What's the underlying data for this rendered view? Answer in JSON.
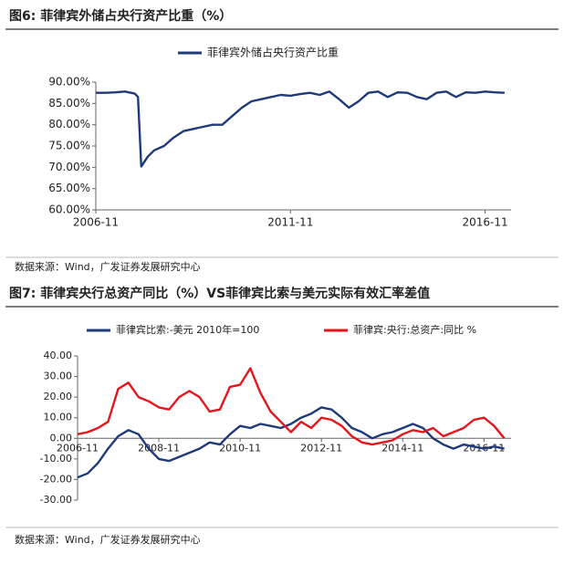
{
  "chart_data": [
    {
      "type": "line",
      "title": "图6: 菲律宾外储占央行资产比重（%）",
      "source": "数据来源：Wind，广发证券发展研究中心",
      "x": [
        "2006-11",
        "2007-02",
        "2007-05",
        "2007-08",
        "2007-11",
        "2007-12",
        "2008-01",
        "2008-03",
        "2008-05",
        "2008-08",
        "2008-11",
        "2009-02",
        "2009-05",
        "2009-08",
        "2009-11",
        "2010-02",
        "2010-05",
        "2010-08",
        "2010-11",
        "2011-02",
        "2011-05",
        "2011-08",
        "2011-11",
        "2012-02",
        "2012-05",
        "2012-08",
        "2012-11",
        "2013-02",
        "2013-05",
        "2013-08",
        "2013-11",
        "2014-02",
        "2014-05",
        "2014-08",
        "2014-11",
        "2015-02",
        "2015-05",
        "2015-08",
        "2015-11",
        "2016-02",
        "2016-05",
        "2016-08",
        "2016-11",
        "2017-02",
        "2017-05"
      ],
      "series": [
        {
          "name": "菲律宾外储占央行资产比重",
          "color": "#1f3a7a",
          "values": [
            87.5,
            87.5,
            87.6,
            87.8,
            87.3,
            86.5,
            70.2,
            72.5,
            74,
            75,
            77,
            78.5,
            79,
            79.5,
            80,
            80,
            82,
            84,
            85.5,
            86,
            86.5,
            87,
            86.8,
            87.2,
            87.5,
            87,
            87.8,
            86,
            84,
            85.5,
            87.5,
            87.8,
            86.5,
            87.6,
            87.5,
            86.5,
            86,
            87.5,
            87.8,
            86.5,
            87.6,
            87.5,
            87.8,
            87.6,
            87.5
          ]
        }
      ],
      "xlim": [
        "2006-11",
        "2017-07"
      ],
      "xticks": [
        "2006-11",
        "2011-11",
        "2016-11"
      ],
      "ylim": [
        60,
        90
      ],
      "yticks": [
        {
          "value": 60,
          "label": "60.00%"
        },
        {
          "value": 65,
          "label": "65.00%"
        },
        {
          "value": 70,
          "label": "70.00%"
        },
        {
          "value": 75,
          "label": "75.00%"
        },
        {
          "value": 80,
          "label": "80.00%"
        },
        {
          "value": 85,
          "label": "85.00%"
        },
        {
          "value": 90,
          "label": "90.00%"
        }
      ]
    },
    {
      "type": "line",
      "title": "图7: 菲律宾央行总资产同比（%）VS菲律宾比索与美元实际有效汇率差值",
      "source": "数据来源：Wind，广发证券发展研究中心",
      "x": [
        "2006-11",
        "2007-02",
        "2007-05",
        "2007-08",
        "2007-11",
        "2008-02",
        "2008-05",
        "2008-08",
        "2008-11",
        "2009-02",
        "2009-05",
        "2009-08",
        "2009-11",
        "2010-02",
        "2010-05",
        "2010-08",
        "2010-11",
        "2011-02",
        "2011-05",
        "2011-08",
        "2011-11",
        "2012-02",
        "2012-05",
        "2012-08",
        "2012-11",
        "2013-02",
        "2013-05",
        "2013-08",
        "2013-11",
        "2014-02",
        "2014-05",
        "2014-08",
        "2014-11",
        "2015-02",
        "2015-05",
        "2015-08",
        "2015-11",
        "2016-02",
        "2016-05",
        "2016-08",
        "2016-11",
        "2017-02",
        "2017-05"
      ],
      "series": [
        {
          "name": "菲律宾比索:-美元 2010年=100",
          "color": "#1f3a7a",
          "values": [
            -19,
            -17,
            -12,
            -5,
            1,
            4,
            2,
            -5,
            -10,
            -11,
            -9,
            -7,
            -5,
            -2,
            -3,
            2,
            6,
            5,
            7,
            6,
            5,
            7,
            10,
            12,
            15,
            14,
            10,
            5,
            3,
            0,
            2,
            3,
            5,
            7,
            5,
            0,
            -3,
            -5,
            -3,
            -4,
            -5,
            -4,
            -5
          ]
        },
        {
          "name": "菲律宾:央行:总资产:同比 %",
          "color": "#e8141b",
          "values": [
            2,
            3,
            5,
            8,
            24,
            27,
            20,
            18,
            15,
            14,
            20,
            23,
            20,
            13,
            14,
            25,
            26,
            34,
            22,
            13,
            8,
            3,
            8,
            5,
            10,
            9,
            6,
            1,
            -2,
            -3,
            -2,
            -1,
            2,
            4,
            3,
            5,
            1,
            3,
            5,
            9,
            10,
            6,
            0
          ]
        }
      ],
      "xlim": [
        "2006-11",
        "2017-07"
      ],
      "xticks": [
        "2006-11",
        "2008-11",
        "2010-11",
        "2012-11",
        "2014-11",
        "2016-11"
      ],
      "ylim": [
        -30,
        40
      ],
      "yticks": [
        {
          "value": -30,
          "label": "-30.00"
        },
        {
          "value": -20,
          "label": "-20.00"
        },
        {
          "value": -10,
          "label": "-10.00"
        },
        {
          "value": 0,
          "label": "0.00"
        },
        {
          "value": 10,
          "label": "10.00"
        },
        {
          "value": 20,
          "label": "20.00"
        },
        {
          "value": 30,
          "label": "30.00"
        },
        {
          "value": 40,
          "label": "40.00"
        }
      ]
    }
  ]
}
